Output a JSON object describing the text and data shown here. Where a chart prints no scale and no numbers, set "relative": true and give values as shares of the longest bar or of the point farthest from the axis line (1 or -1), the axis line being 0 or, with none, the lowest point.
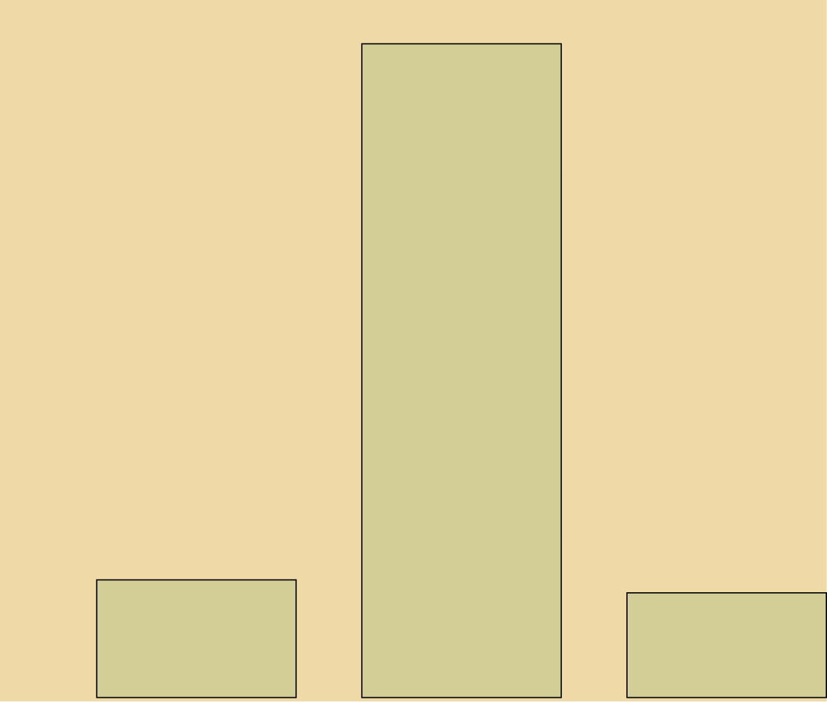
{
  "chart_data": {
    "type": "bar",
    "categories": [
      null,
      null,
      null
    ],
    "values": [
      0.18,
      1,
      0.16
    ],
    "color": "#d3cd96",
    "relative": true
  }
}
